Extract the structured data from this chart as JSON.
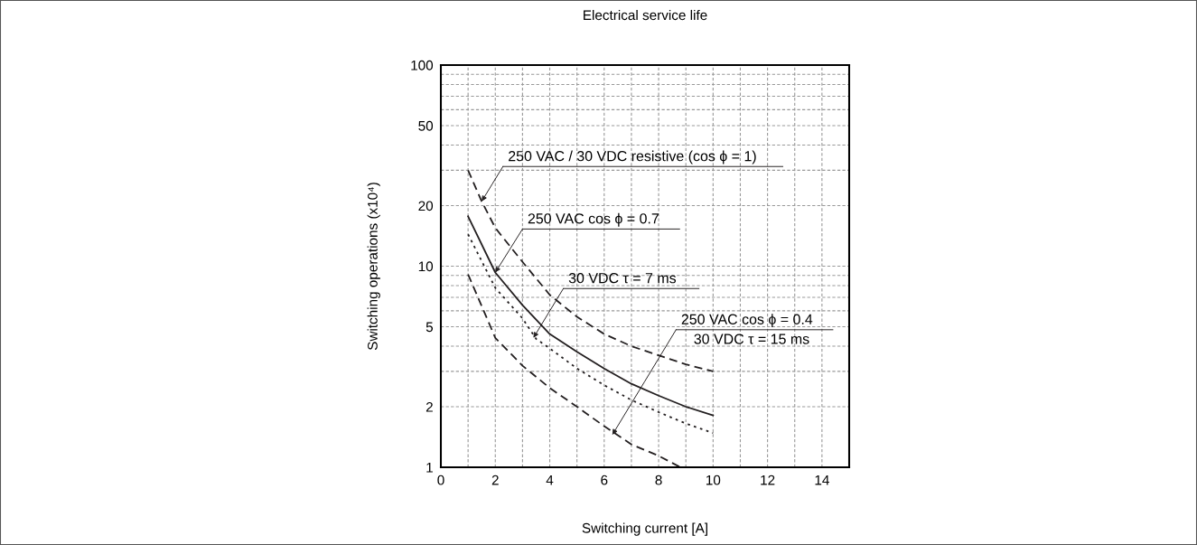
{
  "chart_data": {
    "type": "line",
    "title": "Electrical service life",
    "xlabel": "Switching current [A]",
    "ylabel": "Switching operations (x10⁴)",
    "log": "y",
    "grid": true,
    "marker": "none",
    "xlim": [
      0,
      15
    ],
    "xticks": [
      0,
      {
        "value": 1,
        "label": null
      },
      2,
      {
        "value": 3,
        "label": null
      },
      4,
      {
        "value": 5,
        "label": null
      },
      6,
      {
        "value": 7,
        "label": null
      },
      8,
      {
        "value": 9,
        "label": null
      },
      10,
      {
        "value": 11,
        "label": null
      },
      12,
      {
        "value": 13,
        "label": null
      },
      14,
      {
        "value": 15,
        "label": null
      }
    ],
    "ylim": [
      1,
      100
    ],
    "yticks": [
      1,
      2,
      {
        "value": 3,
        "label": null
      },
      {
        "value": 4,
        "label": null
      },
      5,
      {
        "value": 6,
        "label": null
      },
      {
        "value": 7,
        "label": null
      },
      {
        "value": 8,
        "label": null
      },
      {
        "value": 9,
        "label": null
      },
      10,
      20,
      {
        "value": 30,
        "label": null
      },
      {
        "value": 40,
        "label": null
      },
      50,
      {
        "value": 60,
        "label": null
      },
      {
        "value": 70,
        "label": null
      },
      {
        "value": 80,
        "label": null
      },
      {
        "value": 90,
        "label": null
      },
      100
    ],
    "series": [
      {
        "color": "#231f20",
        "line_style": "dashed",
        "x": [
          1,
          1.5,
          2,
          3,
          4,
          5,
          6,
          7,
          8,
          9,
          10
        ],
        "values": [
          30,
          21,
          15.5,
          10.5,
          7.2,
          5.6,
          4.6,
          4.0,
          3.6,
          3.25,
          3.0
        ]
      },
      {
        "color": "#231f20",
        "line_style": "solid",
        "x": [
          1,
          2,
          3,
          4,
          5,
          6,
          7,
          8,
          9,
          10
        ],
        "values": [
          17.7,
          9.3,
          6.4,
          4.6,
          3.75,
          3.1,
          2.6,
          2.27,
          2.0,
          1.81
        ]
      },
      {
        "color": "#231f20",
        "line_style": "dotted",
        "x": [
          1,
          2,
          3,
          3.5,
          4,
          5,
          6,
          7,
          8,
          9,
          10
        ],
        "values": [
          14.4,
          7.8,
          5.5,
          4.35,
          3.9,
          3.1,
          2.56,
          2.16,
          1.88,
          1.65,
          1.48
        ]
      },
      {
        "color": "#231f20",
        "line_style": "dashed",
        "x": [
          1,
          2,
          3,
          4,
          5,
          6,
          7,
          8,
          8.8
        ],
        "values": [
          9.1,
          4.4,
          3.2,
          2.48,
          2.0,
          1.6,
          1.3,
          1.14,
          1.0
        ]
      }
    ],
    "annotations": [
      {
        "text": "250 VAC / 30 VDC resistive (cos ϕ = 1)",
        "x": 1.5,
        "y": 21
      },
      {
        "text": "250 VAC cos ϕ = 0.7",
        "x": 2,
        "y": 9.3
      },
      {
        "text": "30 VDC τ = 7 ms",
        "x": 3.4,
        "y": 4.4
      },
      {
        "text": "250 VAC cos ϕ = 0.4\n30 VDC τ = 15 ms",
        "x": 6.3,
        "y": 1.45
      }
    ]
  }
}
